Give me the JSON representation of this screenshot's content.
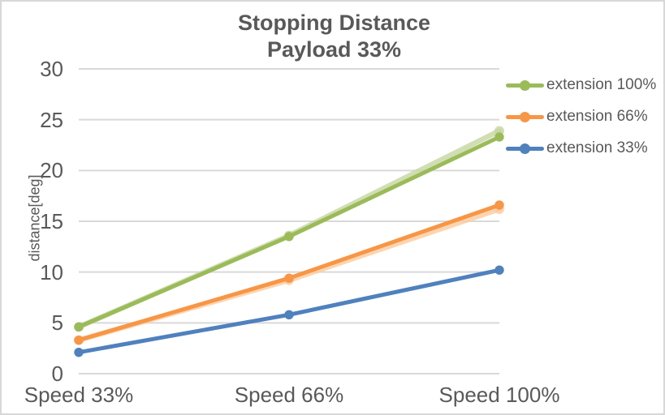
{
  "title": {
    "line1": "Stopping Distance",
    "line2": "Payload 33%"
  },
  "y_axis": {
    "label": "distance[deg]"
  },
  "legend": [
    {
      "label": "extension 100%",
      "color": "#9BBB59"
    },
    {
      "label": "extension 66%",
      "color": "#F79646"
    },
    {
      "label": "extension 33%",
      "color": "#4F81BD"
    }
  ],
  "colors": {
    "grid": "#D9D9D9",
    "text": "#595959",
    "border": "#D8D8D8",
    "green": "#9BBB59",
    "orange": "#F79646",
    "blue": "#4F81BD",
    "green_light": "#C6D6A0",
    "orange_light": "#FBCB9C"
  },
  "chart_data": {
    "type": "line",
    "title": "Stopping Distance Payload 33%",
    "xlabel": "",
    "ylabel": "distance[deg]",
    "categories": [
      "Speed 33%",
      "Speed 66%",
      "Speed 100%"
    ],
    "ylim": [
      0,
      30
    ],
    "ticks": [
      0,
      5,
      10,
      15,
      20,
      25,
      30
    ],
    "grid": true,
    "legend_position": "right",
    "series": [
      {
        "name": "extension 100%",
        "color": "#9BBB59",
        "values": [
          4.6,
          13.5,
          23.3
        ],
        "shadow_color": "#C6D6A0",
        "shadow_values": [
          4.6,
          13.6,
          23.9
        ]
      },
      {
        "name": "extension 66%",
        "color": "#F79646",
        "values": [
          3.3,
          9.4,
          16.6
        ],
        "shadow_color": "#FBCB9C",
        "shadow_values": [
          3.3,
          9.2,
          16.2
        ]
      },
      {
        "name": "extension 33%",
        "color": "#4F81BD",
        "values": [
          2.1,
          5.8,
          10.2
        ]
      }
    ]
  }
}
